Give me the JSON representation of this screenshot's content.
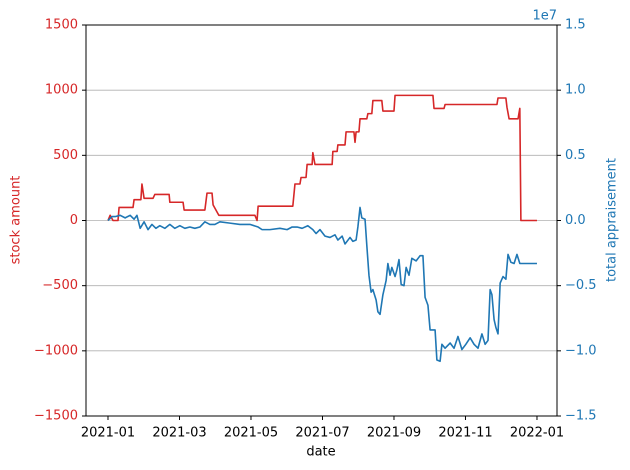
{
  "chart_data": {
    "type": "line",
    "xlabel": "date",
    "ylabel": "stock amount",
    "y2label": "total appraisement",
    "y2_offset_label": "1e7",
    "xlim": [
      -0.615,
      12.56
    ],
    "xticks": [
      {
        "value": 0,
        "label": "2021-01"
      },
      {
        "value": 2,
        "label": "2021-03"
      },
      {
        "value": 4,
        "label": "2021-05"
      },
      {
        "value": 6,
        "label": "2021-07"
      },
      {
        "value": 8,
        "label": "2021-09"
      },
      {
        "value": 10,
        "label": "2021-11"
      },
      {
        "value": 12,
        "label": "2022-01"
      }
    ],
    "ylim": [
      -1500,
      1500
    ],
    "yticks": [
      {
        "value": -1500,
        "label": "−1500"
      },
      {
        "value": -1000,
        "label": "−1000"
      },
      {
        "value": -500,
        "label": "−500"
      },
      0,
      500,
      1000,
      1500
    ],
    "y2lim": [
      -1.5,
      1.5
    ],
    "y2ticks": [
      {
        "value": -1.5,
        "label": "−1.5"
      },
      {
        "value": -1,
        "label": "−1.0"
      },
      {
        "value": -0.5,
        "label": "−0.5"
      },
      {
        "value": 0,
        "label": "0.0"
      },
      0.5,
      {
        "value": 1,
        "label": "1.0"
      },
      1.5
    ],
    "grid": true,
    "series": [
      {
        "name": "stock amount",
        "color": "#d62728",
        "axis": "y",
        "x": [
          0,
          0.06,
          0.14,
          0.28,
          0.31,
          0.7,
          0.73,
          0.92,
          0.95,
          1.01,
          1.26,
          1.31,
          1.71,
          1.73,
          2.1,
          2.13,
          2.71,
          2.77,
          2.91,
          2.94,
          3.1,
          4.11,
          4.17,
          4.2,
          5.17,
          5.23,
          5.37,
          5.4,
          5.54,
          5.57,
          5.71,
          5.73,
          5.79,
          6.27,
          6.29,
          6.41,
          6.43,
          6.63,
          6.66,
          6.88,
          6.91,
          6.94,
          7.02,
          7.05,
          7.24,
          7.27,
          7.38,
          7.41,
          7.66,
          7.69,
          8,
          8.03,
          9.09,
          9.12,
          9.4,
          9.43,
          10.88,
          10.91,
          11.13,
          11.16,
          11.22,
          11.47,
          11.52,
          11.55,
          12
        ],
        "values": [
          0,
          40,
          0,
          0,
          100,
          100,
          160,
          160,
          280,
          170,
          170,
          200,
          200,
          140,
          140,
          80,
          80,
          210,
          210,
          120,
          40,
          40,
          0,
          110,
          110,
          280,
          280,
          330,
          330,
          430,
          430,
          520,
          430,
          430,
          530,
          530,
          580,
          580,
          680,
          680,
          600,
          680,
          680,
          780,
          780,
          820,
          820,
          920,
          920,
          840,
          840,
          960,
          960,
          860,
          860,
          890,
          890,
          940,
          940,
          870,
          780,
          780,
          860,
          0,
          0
        ]
      },
      {
        "name": "total appraisement",
        "color": "#1f77b4",
        "axis": "y2",
        "x": [
          0,
          0.11,
          0.2,
          0.34,
          0.48,
          0.62,
          0.73,
          0.81,
          0.9,
          1.01,
          1.12,
          1.23,
          1.34,
          1.45,
          1.59,
          1.73,
          1.87,
          2.01,
          2.15,
          2.29,
          2.43,
          2.57,
          2.71,
          2.85,
          2.99,
          3.13,
          3.41,
          3.69,
          3.97,
          4.2,
          4.31,
          4.53,
          4.81,
          5.01,
          5.15,
          5.29,
          5.43,
          5.59,
          5.73,
          5.82,
          5.93,
          6.07,
          6.21,
          6.35,
          6.43,
          6.55,
          6.63,
          6.77,
          6.85,
          6.94,
          6.99,
          7.05,
          7.1,
          7.19,
          7.24,
          7.3,
          7.36,
          7.41,
          7.5,
          7.55,
          7.61,
          7.69,
          7.78,
          7.83,
          7.89,
          7.94,
          8.03,
          8.08,
          8.14,
          8.2,
          8.28,
          8.34,
          8.42,
          8.5,
          8.62,
          8.73,
          8.81,
          8.87,
          8.95,
          9.01,
          9.15,
          9.2,
          9.29,
          9.34,
          9.43,
          9.57,
          9.68,
          9.79,
          9.9,
          10.01,
          10.13,
          10.24,
          10.35,
          10.46,
          10.55,
          10.63,
          10.69,
          10.74,
          10.8,
          10.85,
          10.91,
          10.97,
          11.05,
          11.13,
          11.19,
          11.27,
          11.36,
          11.44,
          11.52,
          11.66,
          12
        ],
        "values": [
          0,
          0.03,
          0.03,
          0.04,
          0.02,
          0.04,
          0.01,
          0.04,
          -0.06,
          -0.01,
          -0.07,
          -0.03,
          -0.06,
          -0.04,
          -0.06,
          -0.03,
          -0.06,
          -0.04,
          -0.06,
          -0.05,
          -0.06,
          -0.05,
          -0.01,
          -0.03,
          -0.03,
          -0.01,
          -0.02,
          -0.03,
          -0.03,
          -0.05,
          -0.07,
          -0.07,
          -0.06,
          -0.07,
          -0.05,
          -0.05,
          -0.06,
          -0.04,
          -0.07,
          -0.1,
          -0.07,
          -0.12,
          -0.13,
          -0.11,
          -0.15,
          -0.12,
          -0.18,
          -0.13,
          -0.16,
          -0.15,
          -0.05,
          0.1,
          0.02,
          0.01,
          -0.19,
          -0.42,
          -0.55,
          -0.53,
          -0.61,
          -0.7,
          -0.72,
          -0.57,
          -0.46,
          -0.33,
          -0.42,
          -0.36,
          -0.43,
          -0.38,
          -0.3,
          -0.49,
          -0.5,
          -0.36,
          -0.42,
          -0.29,
          -0.31,
          -0.27,
          -0.27,
          -0.59,
          -0.65,
          -0.84,
          -0.84,
          -1.07,
          -1.08,
          -0.95,
          -0.98,
          -0.94,
          -0.98,
          -0.89,
          -0.99,
          -0.95,
          -0.9,
          -0.95,
          -0.98,
          -0.87,
          -0.95,
          -0.92,
          -0.53,
          -0.57,
          -0.76,
          -0.82,
          -0.87,
          -0.48,
          -0.43,
          -0.45,
          -0.26,
          -0.32,
          -0.33,
          -0.26,
          -0.33,
          -0.33,
          -0.33
        ]
      }
    ]
  }
}
